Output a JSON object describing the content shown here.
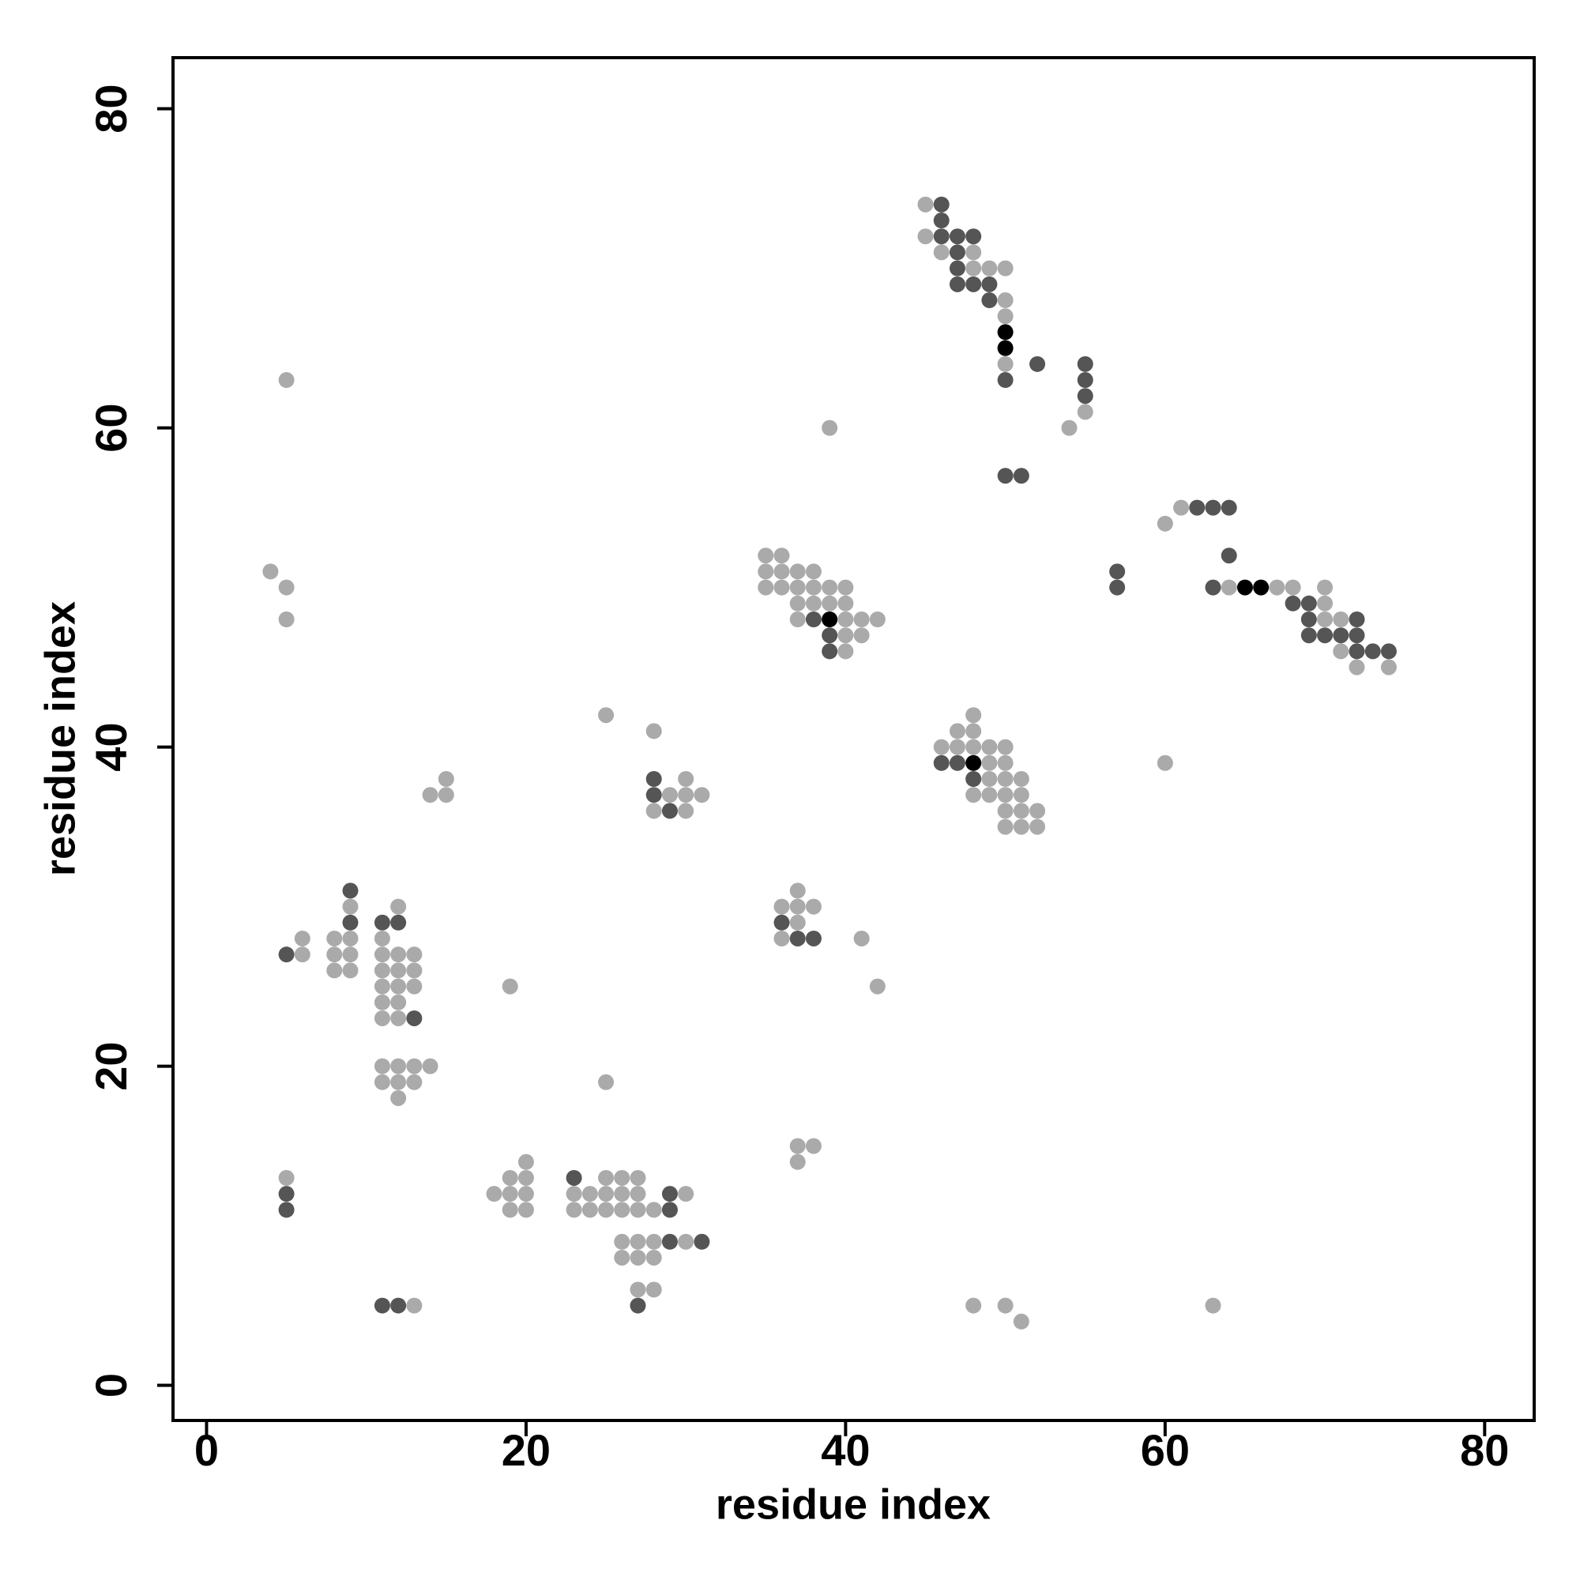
{
  "chart_data": {
    "type": "scatter",
    "xlabel": "residue index",
    "ylabel": "residue index",
    "xlim": [
      -2.1,
      83.1
    ],
    "ylim": [
      -2.2,
      83.2
    ],
    "xticks": [
      0,
      20,
      40,
      60,
      80
    ],
    "yticks": [
      0,
      20,
      40,
      60,
      80
    ],
    "series": [
      {
        "color": "#aaaaaa",
        "x": [
          45,
          45,
          46,
          48,
          48,
          49,
          50,
          50,
          50,
          50,
          5,
          55,
          39,
          54,
          61,
          60,
          35,
          36,
          4,
          35,
          36,
          37,
          38,
          5,
          35,
          36,
          37,
          38,
          39,
          40,
          64,
          67,
          68,
          70,
          37,
          38,
          39,
          40,
          70,
          5,
          37,
          40,
          41,
          42,
          70,
          71,
          40,
          41,
          40,
          71,
          72,
          74,
          25,
          48,
          28,
          47,
          48,
          46,
          47,
          48,
          49,
          50,
          49,
          50,
          60,
          15,
          30,
          49,
          50,
          51,
          14,
          15,
          29,
          30,
          31,
          48,
          49,
          50,
          51,
          28,
          30,
          50,
          51,
          52,
          50,
          51,
          52,
          37,
          9,
          12,
          36,
          37,
          38,
          37,
          6,
          8,
          9,
          11,
          36,
          41,
          6,
          8,
          9,
          11,
          12,
          13,
          8,
          9,
          11,
          12,
          13,
          11,
          12,
          13,
          19,
          42,
          11,
          12,
          11,
          12,
          11,
          12,
          13,
          14,
          11,
          12,
          13,
          25,
          12,
          37,
          38,
          20,
          37,
          5,
          19,
          20,
          25,
          26,
          27,
          18,
          19,
          20,
          23,
          24,
          25,
          26,
          27,
          30,
          19,
          20,
          23,
          24,
          25,
          26,
          27,
          28,
          26,
          27,
          28,
          30,
          26,
          27,
          28,
          27,
          28,
          13,
          48,
          50,
          63,
          51
        ],
        "values": [
          74,
          72,
          71,
          71,
          70,
          70,
          70,
          68,
          67,
          64,
          63,
          61,
          60,
          60,
          55,
          54,
          52,
          52,
          51,
          51,
          51,
          51,
          51,
          50,
          50,
          50,
          50,
          50,
          50,
          50,
          50,
          50,
          50,
          50,
          49,
          49,
          49,
          49,
          49,
          48,
          48,
          48,
          48,
          48,
          48,
          48,
          47,
          47,
          46,
          46,
          45,
          45,
          42,
          42,
          41,
          41,
          41,
          40,
          40,
          40,
          40,
          40,
          39,
          39,
          39,
          38,
          38,
          38,
          38,
          38,
          37,
          37,
          37,
          37,
          37,
          37,
          37,
          37,
          37,
          36,
          36,
          36,
          36,
          36,
          35,
          35,
          35,
          31,
          30,
          30,
          30,
          30,
          30,
          29,
          28,
          28,
          28,
          28,
          28,
          28,
          27,
          27,
          27,
          27,
          27,
          27,
          26,
          26,
          26,
          26,
          26,
          25,
          25,
          25,
          25,
          25,
          24,
          24,
          23,
          23,
          20,
          20,
          20,
          20,
          19,
          19,
          19,
          19,
          18,
          15,
          15,
          14,
          14,
          13,
          13,
          13,
          13,
          13,
          13,
          12,
          12,
          12,
          12,
          12,
          12,
          12,
          12,
          12,
          11,
          11,
          11,
          11,
          11,
          11,
          11,
          11,
          9,
          9,
          9,
          9,
          8,
          8,
          8,
          6,
          6,
          5,
          5,
          5,
          5,
          4
        ]
      },
      {
        "color": "#555555",
        "x": [
          46,
          46,
          46,
          47,
          48,
          47,
          47,
          47,
          48,
          49,
          49,
          52,
          55,
          50,
          55,
          55,
          50,
          51,
          62,
          63,
          64,
          64,
          57,
          57,
          63,
          68,
          69,
          38,
          69,
          72,
          39,
          69,
          70,
          71,
          72,
          39,
          72,
          73,
          74,
          46,
          47,
          28,
          48,
          28,
          29,
          9,
          9,
          11,
          12,
          36,
          37,
          38,
          5,
          13,
          23,
          5,
          29,
          5,
          29,
          29,
          31,
          11,
          12,
          27
        ],
        "values": [
          74,
          73,
          72,
          72,
          72,
          71,
          70,
          69,
          69,
          69,
          68,
          64,
          64,
          63,
          63,
          62,
          57,
          57,
          55,
          55,
          55,
          52,
          51,
          50,
          50,
          49,
          49,
          48,
          48,
          48,
          47,
          47,
          47,
          47,
          47,
          46,
          46,
          46,
          46,
          39,
          39,
          38,
          38,
          37,
          36,
          31,
          29,
          29,
          29,
          29,
          28,
          28,
          27,
          23,
          13,
          12,
          12,
          11,
          11,
          9,
          9,
          5,
          5,
          5
        ]
      },
      {
        "color": "#000000",
        "x": [
          50,
          50,
          39,
          48,
          65,
          66
        ],
        "values": [
          66,
          65,
          48,
          39,
          50,
          50
        ]
      }
    ]
  }
}
